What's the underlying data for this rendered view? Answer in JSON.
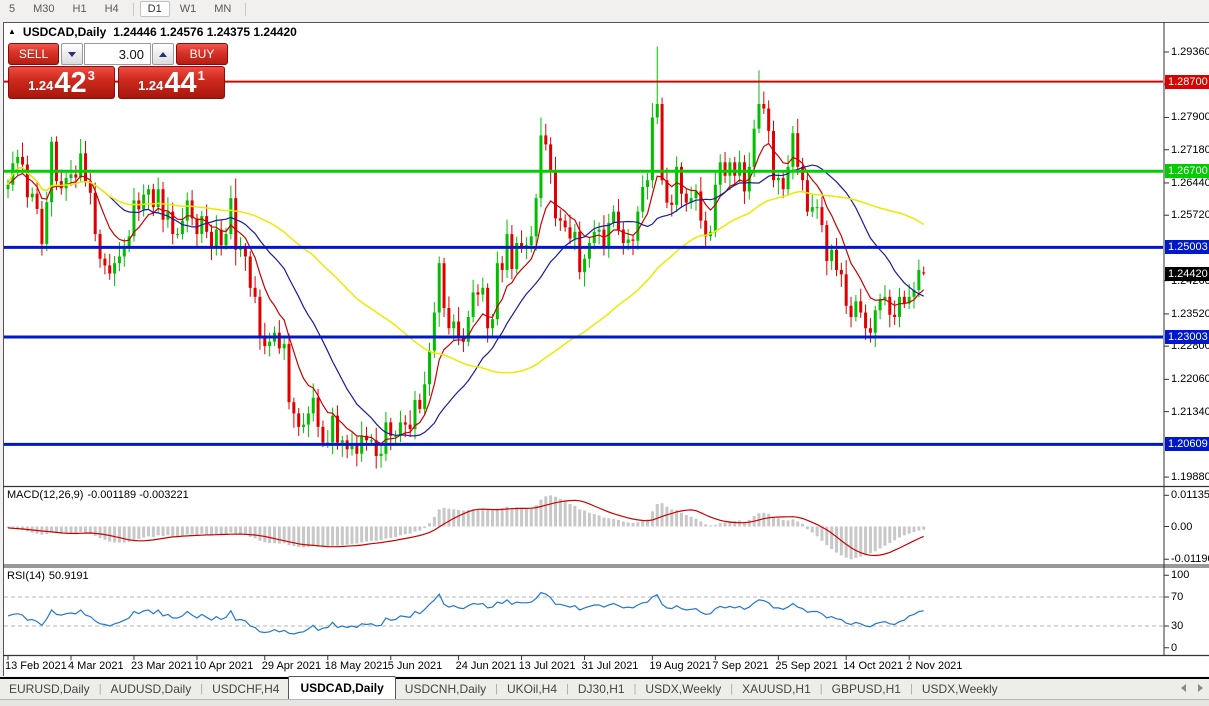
{
  "toolbar": {
    "items": [
      {
        "label": "5"
      },
      {
        "label": "M30"
      },
      {
        "label": "H1"
      },
      {
        "label": "H4"
      },
      {
        "sep": true
      },
      {
        "label": "D1",
        "active": true
      },
      {
        "label": "W1"
      },
      {
        "label": "MN"
      },
      {
        "sep": true
      }
    ]
  },
  "chart_header": {
    "collapse_icon": "▲",
    "symbol": "USDCAD,Daily",
    "ohlc": "1.24446 1.24576 1.24375 1.24420"
  },
  "trade_panel": {
    "sell_label": "SELL",
    "buy_label": "BUY",
    "volume": "3.00",
    "sell_price": {
      "prefix": "1.24",
      "big": "42",
      "sup": "3"
    },
    "buy_price": {
      "prefix": "1.24",
      "big": "44",
      "sup": "1"
    }
  },
  "tabs": {
    "items": [
      {
        "label": "EURUSD,Daily"
      },
      {
        "label": "AUDUSD,Daily"
      },
      {
        "label": "USDCHF,H4"
      },
      {
        "label": "USDCAD,Daily",
        "active": true
      },
      {
        "label": "USDCNH,Daily"
      },
      {
        "label": "UKOil,H4"
      },
      {
        "label": "DJ30,H1"
      },
      {
        "label": "USDX,Weekly"
      },
      {
        "label": "XAUUSD,H1"
      },
      {
        "label": "GBPUSD,H1"
      },
      {
        "label": "USDX,Weekly"
      }
    ]
  },
  "chart_data": {
    "type": "candlestick",
    "symbol": "USDCAD",
    "timeframe": "Daily",
    "ohlc_display": {
      "open": "1.24446",
      "high": "1.24576",
      "low": "1.24375",
      "close": "1.24420"
    },
    "colors": {
      "up": "#00bf00",
      "down": "#e00000",
      "ma_fast": "#cc0000",
      "ma_mid": "#1a1aa0",
      "ma_slow": "#ebeb00",
      "macd_hist": "#c8c8c8",
      "macd_signal": "#cc0000",
      "rsi": "#2277d4",
      "rsi_levels": "#b4b4b4"
    },
    "price_axis": {
      "range": [
        1.19703,
        1.29851
      ],
      "grid_labels": [
        {
          "text": "1.29360",
          "price": 1.2936
        },
        {
          "text": "1.28640",
          "price": 1.2864
        },
        {
          "text": "1.27900",
          "price": 1.279
        },
        {
          "text": "1.27180",
          "price": 1.2718
        },
        {
          "text": "1.26440",
          "price": 1.2644
        },
        {
          "text": "1.25720",
          "price": 1.2572
        },
        {
          "text": "1.24260",
          "price": 1.2426
        },
        {
          "text": "1.23520",
          "price": 1.2352
        },
        {
          "text": "1.22800",
          "price": 1.228
        },
        {
          "text": "1.22060",
          "price": 1.2206
        },
        {
          "text": "1.21340",
          "price": 1.2134
        },
        {
          "text": "1.19880",
          "price": 1.1988
        }
      ],
      "badges": [
        {
          "text": "1.28700",
          "price": 1.287,
          "color": "#dd0000"
        },
        {
          "text": "1.26700",
          "price": 1.267,
          "color": "#00cc00"
        },
        {
          "text": "1.25003",
          "price": 1.25003,
          "color": "#0018cc"
        },
        {
          "text": "1.24420",
          "price": 1.2442,
          "color": "#000000"
        },
        {
          "text": "1.23003",
          "price": 1.23003,
          "color": "#0018cc"
        },
        {
          "text": "1.20609",
          "price": 1.20609,
          "color": "#0018cc"
        }
      ]
    },
    "horizontal_levels": [
      {
        "price": 1.287,
        "color": "#dd0000",
        "width": 2
      },
      {
        "price": 1.267,
        "color": "#00d000",
        "width": 3
      },
      {
        "price": 1.25003,
        "color": "#0018cc",
        "width": 3
      },
      {
        "price": 1.23003,
        "color": "#0018cc",
        "width": 3
      },
      {
        "price": 1.20609,
        "color": "#0018cc",
        "width": 3
      }
    ],
    "time_labels": [
      {
        "text": "13 Feb 2021",
        "index": 0
      },
      {
        "text": "4 Mar 2021",
        "index": 13
      },
      {
        "text": "23 Mar 2021",
        "index": 26
      },
      {
        "text": "10 Apr 2021",
        "index": 39
      },
      {
        "text": "29 Apr 2021",
        "index": 53
      },
      {
        "text": "18 May 2021",
        "index": 66
      },
      {
        "text": "5 Jun 2021",
        "index": 79
      },
      {
        "text": "24 Jun 2021",
        "index": 93
      },
      {
        "text": "13 Jul 2021",
        "index": 106
      },
      {
        "text": "31 Jul 2021",
        "index": 119
      },
      {
        "text": "19 Aug 2021",
        "index": 133
      },
      {
        "text": "7 Sep 2021",
        "index": 146
      },
      {
        "text": "25 Sep 2021",
        "index": 159
      },
      {
        "text": "14 Oct 2021",
        "index": 173
      },
      {
        "text": "2 Nov 2021",
        "index": 186
      }
    ],
    "candles": {
      "first_open": 1.263,
      "wick_pattern": [
        0.0012,
        0.0026,
        0.0016,
        0.0032,
        0.002,
        0.0014,
        0.0028,
        0.0018,
        0.0023,
        0.001
      ],
      "closes": [
        1.264,
        1.2688,
        1.2702,
        1.2685,
        1.2612,
        1.262,
        1.2586,
        1.2508,
        1.2601,
        1.2736,
        1.2648,
        1.2632,
        1.2655,
        1.2663,
        1.2656,
        1.271,
        1.2648,
        1.2622,
        1.253,
        1.2475,
        1.246,
        1.2442,
        1.2465,
        1.248,
        1.25,
        1.2525,
        1.2605,
        1.2585,
        1.2618,
        1.263,
        1.259,
        1.263,
        1.2562,
        1.258,
        1.253,
        1.253,
        1.256,
        1.2605,
        1.2565,
        1.253,
        1.257,
        1.2535,
        1.25,
        1.254,
        1.2505,
        1.253,
        1.261,
        1.2495,
        1.25,
        1.248,
        1.241,
        1.239,
        1.23,
        1.228,
        1.229,
        1.231,
        1.2275,
        1.2285,
        1.2155,
        1.213,
        1.21,
        1.2105,
        1.213,
        1.2165,
        1.21,
        1.2065,
        1.2065,
        1.2125,
        1.2065,
        1.207,
        1.205,
        1.2062,
        1.204,
        1.208,
        1.207,
        1.207,
        1.2035,
        1.204,
        1.211,
        1.208,
        1.208,
        1.211,
        1.2105,
        1.2095,
        1.216,
        1.214,
        1.2195,
        1.227,
        1.2355,
        1.2465,
        1.2365,
        1.232,
        1.2335,
        1.23,
        1.229,
        1.2345,
        1.24,
        1.2395,
        1.241,
        1.232,
        1.234,
        1.2465,
        1.245,
        1.253,
        1.2452,
        1.251,
        1.25,
        1.2505,
        1.2525,
        1.261,
        1.275,
        1.273,
        1.267,
        1.2565,
        1.256,
        1.2545,
        1.252,
        1.2535,
        1.2445,
        1.2475,
        1.251,
        1.2535,
        1.254,
        1.25,
        1.2555,
        1.258,
        1.254,
        1.251,
        1.2518,
        1.2515,
        1.258,
        1.2635,
        1.265,
        1.279,
        1.282,
        1.265,
        1.26,
        1.2595,
        1.268,
        1.262,
        1.26,
        1.261,
        1.2625,
        1.256,
        1.2525,
        1.2535,
        1.264,
        1.269,
        1.266,
        1.269,
        1.266,
        1.269,
        1.2625,
        1.268,
        1.2765,
        1.282,
        1.281,
        1.276,
        1.265,
        1.2655,
        1.263,
        1.268,
        1.2755,
        1.268,
        1.265,
        1.258,
        1.259,
        1.259,
        1.255,
        1.247,
        1.2495,
        1.245,
        1.244,
        1.237,
        1.2345,
        1.238,
        1.2355,
        1.232,
        1.231,
        1.236,
        1.2385,
        1.239,
        1.235,
        1.2345,
        1.239,
        1.2375,
        1.239,
        1.2405,
        1.245,
        1.2442
      ],
      "overrides": {
        "9": {
          "h": 1.2747
        },
        "15": {
          "h": 1.2742
        },
        "19": {
          "l": 1.2455
        },
        "21": {
          "l": 1.2428
        },
        "47": {
          "h": 1.2654,
          "l": 1.246
        },
        "76": {
          "l": 1.2007
        },
        "89": {
          "h": 1.248
        },
        "110": {
          "h": 1.279
        },
        "134": {
          "h": 1.2948,
          "l": 1.2775
        },
        "155": {
          "h": 1.2895
        },
        "178": {
          "l": 1.2288
        },
        "189": {
          "o": 1.24446,
          "h": 1.24576,
          "l": 1.24375,
          "c": 1.2442
        }
      }
    },
    "moving_averages": [
      {
        "name": "fast",
        "method": "ema",
        "period": 9,
        "color": "#cc0000",
        "width": 1.2
      },
      {
        "name": "medium",
        "method": "sma",
        "period": 21,
        "color": "#1a1aa0",
        "width": 1.2
      },
      {
        "name": "slow",
        "method": "sma",
        "period": 55,
        "color": "#ebeb00",
        "width": 1.5
      }
    ],
    "macd": {
      "label": "MACD(12,26,9)",
      "values_text": "-0.001189 -0.003221",
      "signal_period": 9,
      "scale": [
        {
          "text": "0.01135",
          "v": 0.01135
        },
        {
          "text": "0.00",
          "v": 0
        },
        {
          "text": "-0.011904",
          "v": -0.011904
        }
      ],
      "histogram": [
        -0.0005,
        -0.0008,
        -0.001,
        -0.0013,
        -0.0018,
        -0.0022,
        -0.0026,
        -0.003,
        -0.0028,
        -0.0022,
        -0.0024,
        -0.0026,
        -0.0025,
        -0.0024,
        -0.0024,
        -0.002,
        -0.0022,
        -0.0026,
        -0.0034,
        -0.0042,
        -0.0048,
        -0.0055,
        -0.0058,
        -0.0059,
        -0.0058,
        -0.0056,
        -0.0048,
        -0.0045,
        -0.004,
        -0.0036,
        -0.0038,
        -0.0032,
        -0.0035,
        -0.0032,
        -0.0035,
        -0.0036,
        -0.0034,
        -0.0028,
        -0.0028,
        -0.003,
        -0.0026,
        -0.0027,
        -0.0031,
        -0.0028,
        -0.0031,
        -0.0029,
        -0.0022,
        -0.0028,
        -0.0028,
        -0.003,
        -0.0038,
        -0.0043,
        -0.0052,
        -0.0058,
        -0.006,
        -0.006,
        -0.0062,
        -0.0061,
        -0.0068,
        -0.0071,
        -0.0075,
        -0.0076,
        -0.0074,
        -0.0071,
        -0.0074,
        -0.0076,
        -0.0075,
        -0.007,
        -0.007,
        -0.0068,
        -0.0066,
        -0.0063,
        -0.0062,
        -0.0058,
        -0.0055,
        -0.0052,
        -0.0052,
        -0.005,
        -0.0044,
        -0.0042,
        -0.0038,
        -0.0032,
        -0.0028,
        -0.0026,
        -0.0018,
        -0.0015,
        -0.0006,
        0.0012,
        0.0035,
        0.0062,
        0.0068,
        0.0065,
        0.0063,
        0.006,
        0.0058,
        0.006,
        0.0063,
        0.0064,
        0.0066,
        0.006,
        0.0058,
        0.0064,
        0.0066,
        0.0072,
        0.0068,
        0.007,
        0.0068,
        0.0066,
        0.0068,
        0.0078,
        0.0098,
        0.011,
        0.0113,
        0.0108,
        0.01,
        0.0092,
        0.0082,
        0.0075,
        0.0062,
        0.0058,
        0.005,
        0.0045,
        0.004,
        0.0032,
        0.003,
        0.0028,
        0.0024,
        0.0018,
        0.0015,
        0.0013,
        0.0015,
        0.002,
        0.0026,
        0.0055,
        0.0082,
        0.0085,
        0.0072,
        0.0062,
        0.006,
        0.005,
        0.0042,
        0.0035,
        0.0028,
        0.0018,
        0.0008,
        0.0004,
        0.0006,
        0.0012,
        0.0014,
        0.002,
        0.002,
        0.0022,
        0.0018,
        0.0024,
        0.0038,
        0.0048,
        0.005,
        0.0046,
        0.0036,
        0.003,
        0.0024,
        0.0022,
        0.0026,
        0.0018,
        0.001,
        -0.001,
        -0.0022,
        -0.0036,
        -0.0052,
        -0.0068,
        -0.0082,
        -0.0095,
        -0.0105,
        -0.0113,
        -0.0119,
        -0.0115,
        -0.011,
        -0.0104,
        -0.0098,
        -0.009,
        -0.008,
        -0.007,
        -0.006,
        -0.005,
        -0.004,
        -0.0032,
        -0.0026,
        -0.002,
        -0.0015,
        -0.0012
      ]
    },
    "rsi": {
      "label": "RSI(14)",
      "value_text": "50.9191",
      "levels": [
        70,
        30
      ],
      "scale": [
        {
          "text": "100",
          "v": 100
        },
        {
          "text": "70",
          "v": 70
        },
        {
          "text": "30",
          "v": 30
        },
        {
          "text": "0",
          "v": 0
        }
      ],
      "values": [
        44,
        46,
        47,
        45,
        38,
        39,
        36,
        31,
        40,
        52,
        46,
        45,
        47,
        48,
        47,
        52,
        45,
        43,
        37,
        33,
        32,
        30,
        33,
        35,
        38,
        41,
        50,
        47,
        51,
        52,
        47,
        52,
        44,
        46,
        41,
        41,
        44,
        50,
        45,
        41,
        46,
        42,
        38,
        43,
        39,
        42,
        51,
        38,
        39,
        37,
        30,
        28,
        22,
        21,
        22,
        25,
        22,
        24,
        20,
        19,
        21,
        22,
        26,
        31,
        24,
        27,
        28,
        35,
        28,
        30,
        28,
        30,
        28,
        33,
        32,
        33,
        30,
        31,
        41,
        38,
        39,
        44,
        43,
        42,
        50,
        47,
        53,
        60,
        66,
        74,
        60,
        56,
        58,
        55,
        54,
        58,
        61,
        60,
        61,
        55,
        56,
        63,
        61,
        66,
        60,
        63,
        62,
        62,
        63,
        68,
        76,
        74,
        69,
        60,
        60,
        58,
        56,
        58,
        52,
        55,
        57,
        59,
        59,
        56,
        59,
        61,
        58,
        55,
        56,
        55,
        59,
        62,
        63,
        70,
        73,
        60,
        55,
        54,
        58,
        54,
        52,
        53,
        54,
        49,
        46,
        47,
        54,
        57,
        55,
        57,
        55,
        57,
        53,
        56,
        62,
        66,
        65,
        62,
        55,
        55,
        53,
        56,
        61,
        56,
        54,
        49,
        50,
        50,
        47,
        41,
        43,
        40,
        39,
        34,
        32,
        35,
        33,
        30,
        29,
        33,
        35,
        36,
        33,
        32,
        36,
        38,
        44,
        46,
        50,
        50.92
      ]
    }
  }
}
